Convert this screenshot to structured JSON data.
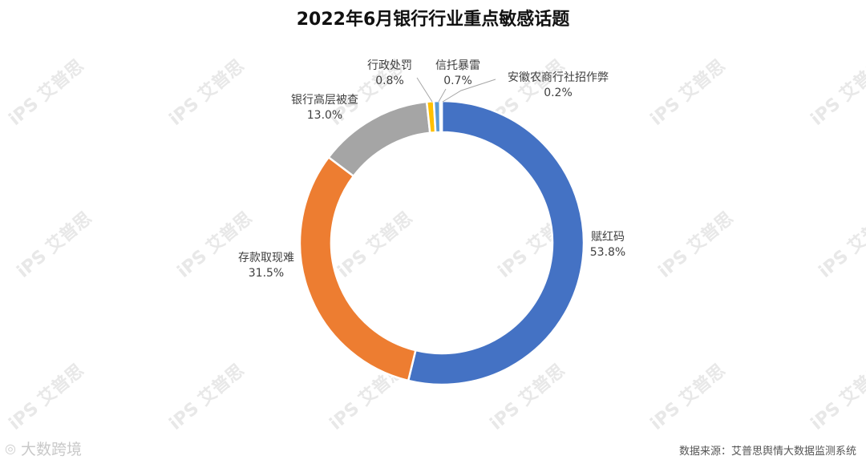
{
  "chart_data": {
    "type": "pie",
    "title": "2022年6月银行行业重点敏感话题",
    "donut": true,
    "categories": [
      "赋红码",
      "存款取现难",
      "银行高层被查",
      "行政处罚",
      "信托暴雷",
      "安徽农商行社招作弊"
    ],
    "values": [
      53.8,
      31.5,
      13.0,
      0.8,
      0.7,
      0.2
    ],
    "value_labels": [
      "53.8%",
      "31.5%",
      "13.0%",
      "0.8%",
      "0.7%",
      "0.2%"
    ],
    "colors": [
      "#4472C4",
      "#ED7D31",
      "#A5A5A5",
      "#FFC000",
      "#5B9BD5",
      "#70AD47"
    ]
  },
  "footer": {
    "source": "数据来源：艾普思舆情大数据监测系统",
    "brand": "大数跨境"
  },
  "watermark": {
    "text": "iPS 艾普思"
  }
}
